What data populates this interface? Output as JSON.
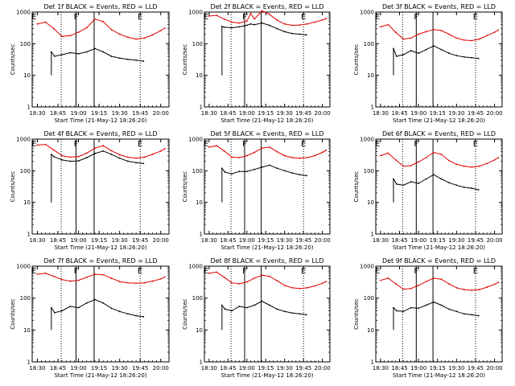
{
  "figure": {
    "scale": "log",
    "y_ticks": [
      1,
      10,
      100,
      1000
    ],
    "y_tick_labels": [
      "1",
      "10",
      "100",
      "1000"
    ],
    "x_tick_labels": [
      "18:30",
      "18:45",
      "19:00",
      "19:15",
      "19:30",
      "19:45",
      "20:00"
    ],
    "x_tick_hours": [
      18.5,
      18.75,
      19.0,
      19.25,
      19.5,
      19.75,
      20.0
    ],
    "xlim_hours": [
      18.4372,
      20.1
    ],
    "ylim": [
      1,
      1000
    ],
    "ylabel": "Counts/sec",
    "xlabel": "Start Time (21-May-12 18:26:20)",
    "colors": {
      "events": "#000000",
      "lld": "#e00000",
      "axes": "#000000"
    },
    "region_markers": [
      {
        "letter": "E",
        "hour": 18.46,
        "line": "none"
      },
      {
        "letter": "F",
        "hour": 18.97,
        "line": "solid"
      },
      {
        "letter": "E",
        "hour": 19.75,
        "line": "dotted"
      }
    ],
    "dotted_hours": [
      18.79,
      19.75
    ],
    "solid_hours": [
      18.97,
      19.19
    ]
  },
  "chart_data": [
    {
      "type": "line",
      "title": "Det 1f BLACK = Events, RED = LLD",
      "scale": "log",
      "series": [
        {
          "name": "Events",
          "x": [
            18.67,
            18.71,
            18.8,
            18.9,
            19.0,
            19.1,
            19.2,
            19.3,
            19.4,
            19.5,
            19.6,
            19.7,
            19.79
          ],
          "values": [
            55,
            40,
            45,
            52,
            48,
            55,
            70,
            55,
            40,
            35,
            32,
            30,
            28
          ]
        },
        {
          "name": "LLD",
          "x": [
            18.5,
            18.6,
            18.7,
            18.8,
            18.9,
            19.0,
            19.1,
            19.2,
            19.3,
            19.4,
            19.5,
            19.6,
            19.7,
            19.8,
            19.9,
            20.0,
            20.05
          ],
          "values": [
            420,
            480,
            300,
            170,
            180,
            230,
            320,
            600,
            500,
            280,
            200,
            160,
            140,
            150,
            190,
            260,
            310
          ]
        }
      ]
    },
    {
      "type": "line",
      "title": "Det 2f BLACK = Events, RED = LLD",
      "scale": "log",
      "series": [
        {
          "name": "Events",
          "x": [
            18.67,
            18.7,
            18.8,
            18.9,
            19.0,
            19.05,
            19.1,
            19.2,
            19.3,
            19.4,
            19.5,
            19.6,
            19.7,
            19.79
          ],
          "values": [
            350,
            330,
            320,
            340,
            380,
            420,
            400,
            450,
            380,
            300,
            240,
            210,
            200,
            190
          ]
        },
        {
          "name": "LLD",
          "x": [
            18.5,
            18.6,
            18.7,
            18.8,
            18.9,
            19.0,
            19.05,
            19.1,
            19.2,
            19.3,
            19.4,
            19.5,
            19.6,
            19.7,
            19.8,
            19.9,
            20.0,
            20.05
          ],
          "values": [
            750,
            780,
            600,
            480,
            450,
            520,
            900,
            600,
            1100,
            850,
            550,
            420,
            380,
            390,
            420,
            480,
            560,
            620
          ]
        }
      ]
    },
    {
      "type": "line",
      "title": "Det 3f BLACK = Events, RED = LLD",
      "scale": "log",
      "series": [
        {
          "name": "Events",
          "x": [
            18.67,
            18.71,
            18.8,
            18.9,
            19.0,
            19.1,
            19.2,
            19.3,
            19.4,
            19.5,
            19.6,
            19.7,
            19.79
          ],
          "values": [
            70,
            40,
            45,
            60,
            50,
            65,
            85,
            65,
            50,
            42,
            38,
            36,
            34
          ]
        },
        {
          "name": "LLD",
          "x": [
            18.5,
            18.6,
            18.7,
            18.8,
            18.9,
            19.0,
            19.1,
            19.2,
            19.3,
            19.4,
            19.5,
            19.6,
            19.7,
            19.8,
            19.9,
            20.0,
            20.05
          ],
          "values": [
            340,
            400,
            230,
            140,
            150,
            200,
            240,
            280,
            260,
            200,
            150,
            130,
            125,
            140,
            180,
            230,
            270
          ]
        }
      ]
    },
    {
      "type": "line",
      "title": "Det 4f BLACK = Events, RED = LLD",
      "scale": "log",
      "series": [
        {
          "name": "Events",
          "x": [
            18.67,
            18.7,
            18.8,
            18.9,
            19.0,
            19.1,
            19.2,
            19.3,
            19.4,
            19.5,
            19.6,
            19.7,
            19.79
          ],
          "values": [
            330,
            280,
            220,
            200,
            205,
            260,
            350,
            420,
            330,
            250,
            200,
            180,
            170
          ]
        },
        {
          "name": "LLD",
          "x": [
            18.5,
            18.6,
            18.7,
            18.8,
            18.9,
            19.0,
            19.1,
            19.2,
            19.3,
            19.4,
            19.5,
            19.6,
            19.7,
            19.8,
            19.9,
            20.0,
            20.05
          ],
          "values": [
            650,
            680,
            450,
            300,
            270,
            280,
            360,
            520,
            620,
            430,
            320,
            270,
            250,
            270,
            330,
            420,
            500
          ]
        }
      ]
    },
    {
      "type": "line",
      "title": "Det 5f BLACK = Events, RED = LLD",
      "scale": "log",
      "series": [
        {
          "name": "Events",
          "x": [
            18.67,
            18.71,
            18.8,
            18.9,
            19.0,
            19.1,
            19.2,
            19.3,
            19.4,
            19.5,
            19.6,
            19.7,
            19.79
          ],
          "values": [
            120,
            90,
            80,
            95,
            95,
            110,
            130,
            150,
            120,
            100,
            85,
            75,
            70
          ]
        },
        {
          "name": "LLD",
          "x": [
            18.5,
            18.6,
            18.7,
            18.8,
            18.9,
            19.0,
            19.1,
            19.2,
            19.3,
            19.4,
            19.5,
            19.6,
            19.7,
            19.8,
            19.9,
            20.0,
            20.05
          ],
          "values": [
            560,
            620,
            420,
            270,
            260,
            300,
            380,
            520,
            560,
            400,
            300,
            260,
            250,
            260,
            300,
            380,
            440
          ]
        }
      ]
    },
    {
      "type": "line",
      "title": "Det 6f BLACK = Events, RED = LLD",
      "scale": "log",
      "series": [
        {
          "name": "Events",
          "x": [
            18.67,
            18.71,
            18.8,
            18.9,
            19.0,
            19.1,
            19.2,
            19.3,
            19.4,
            19.5,
            19.6,
            19.7,
            19.79
          ],
          "values": [
            55,
            38,
            35,
            45,
            40,
            55,
            75,
            55,
            42,
            35,
            30,
            28,
            25
          ]
        },
        {
          "name": "LLD",
          "x": [
            18.5,
            18.6,
            18.7,
            18.8,
            18.9,
            19.0,
            19.1,
            19.2,
            19.3,
            19.4,
            19.5,
            19.6,
            19.7,
            19.8,
            19.9,
            20.0,
            20.05
          ],
          "values": [
            300,
            360,
            220,
            140,
            145,
            190,
            260,
            380,
            330,
            210,
            160,
            140,
            130,
            140,
            170,
            220,
            260
          ]
        }
      ]
    },
    {
      "type": "line",
      "title": "Det 7f BLACK = Events, RED = LLD",
      "scale": "log",
      "series": [
        {
          "name": "Events",
          "x": [
            18.67,
            18.71,
            18.8,
            18.9,
            19.0,
            19.1,
            19.2,
            19.3,
            19.4,
            19.5,
            19.6,
            19.7,
            19.79
          ],
          "values": [
            50,
            35,
            40,
            55,
            50,
            70,
            90,
            70,
            48,
            38,
            32,
            28,
            26
          ]
        },
        {
          "name": "LLD",
          "x": [
            18.5,
            18.6,
            18.7,
            18.8,
            18.9,
            19.0,
            19.1,
            19.2,
            19.3,
            19.4,
            19.5,
            19.6,
            19.7,
            19.8,
            19.9,
            20.0,
            20.05
          ],
          "values": [
            560,
            600,
            480,
            380,
            340,
            360,
            450,
            560,
            540,
            420,
            330,
            300,
            290,
            300,
            340,
            400,
            460
          ]
        }
      ]
    },
    {
      "type": "line",
      "title": "Det 8f BLACK = Events, RED = LLD",
      "scale": "log",
      "series": [
        {
          "name": "Events",
          "x": [
            18.67,
            18.71,
            18.8,
            18.9,
            19.0,
            19.1,
            19.2,
            19.3,
            19.4,
            19.5,
            19.6,
            19.7,
            19.79
          ],
          "values": [
            60,
            45,
            40,
            55,
            50,
            60,
            80,
            60,
            45,
            38,
            34,
            32,
            30
          ]
        },
        {
          "name": "LLD",
          "x": [
            18.5,
            18.6,
            18.7,
            18.8,
            18.9,
            19.0,
            19.1,
            19.2,
            19.3,
            19.4,
            19.5,
            19.6,
            19.7,
            19.8,
            19.9,
            20.0,
            20.05
          ],
          "values": [
            600,
            650,
            450,
            300,
            280,
            320,
            420,
            520,
            480,
            350,
            250,
            210,
            200,
            210,
            240,
            290,
            330
          ]
        }
      ]
    },
    {
      "type": "line",
      "title": "Det 9f BLACK = Events, RED = LLD",
      "scale": "log",
      "series": [
        {
          "name": "Events",
          "x": [
            18.67,
            18.71,
            18.8,
            18.9,
            19.0,
            19.1,
            19.2,
            19.3,
            19.4,
            19.5,
            19.6,
            19.7,
            19.79
          ],
          "values": [
            50,
            40,
            38,
            50,
            48,
            60,
            75,
            60,
            45,
            38,
            32,
            30,
            28
          ]
        },
        {
          "name": "LLD",
          "x": [
            18.5,
            18.6,
            18.7,
            18.8,
            18.9,
            19.0,
            19.1,
            19.2,
            19.3,
            19.4,
            19.5,
            19.6,
            19.7,
            19.8,
            19.9,
            20.0,
            20.05
          ],
          "values": [
            360,
            420,
            280,
            190,
            200,
            250,
            330,
            420,
            390,
            280,
            210,
            185,
            175,
            185,
            220,
            270,
            310
          ]
        }
      ]
    }
  ]
}
